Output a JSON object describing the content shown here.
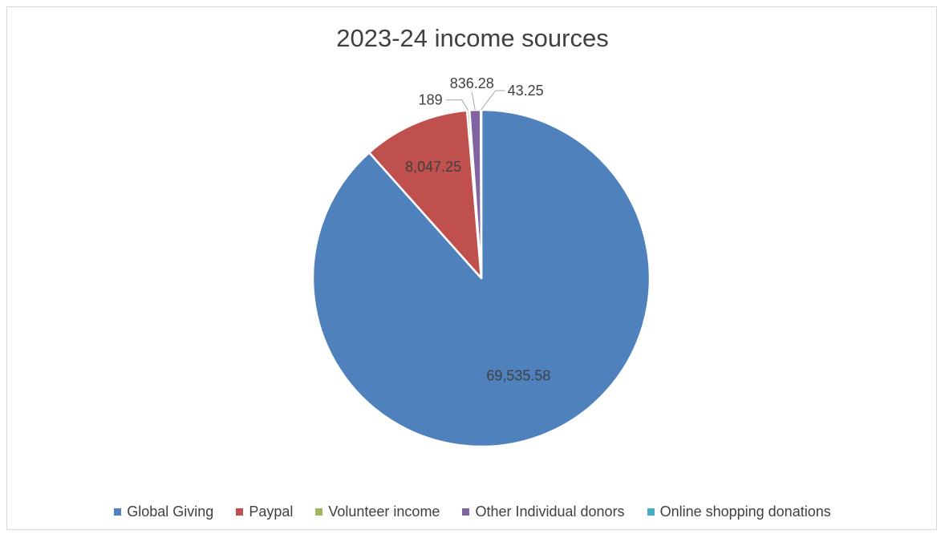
{
  "chart_data": {
    "type": "pie",
    "title": "2023-24 income sources",
    "categories": [
      "Global Giving",
      "Paypal",
      "Volunteer income",
      "Other Individual donors",
      "Online shopping donations"
    ],
    "values": [
      69535.58,
      8047.25,
      189,
      836.28,
      43.25
    ],
    "labels": [
      "69,535.58",
      "8,047.25",
      "189",
      "836.28",
      "43.25"
    ],
    "colors": [
      "#4f81bd",
      "#c0504d",
      "#9bbb59",
      "#8064a2",
      "#4bacc6"
    ],
    "legend_position": "bottom"
  }
}
